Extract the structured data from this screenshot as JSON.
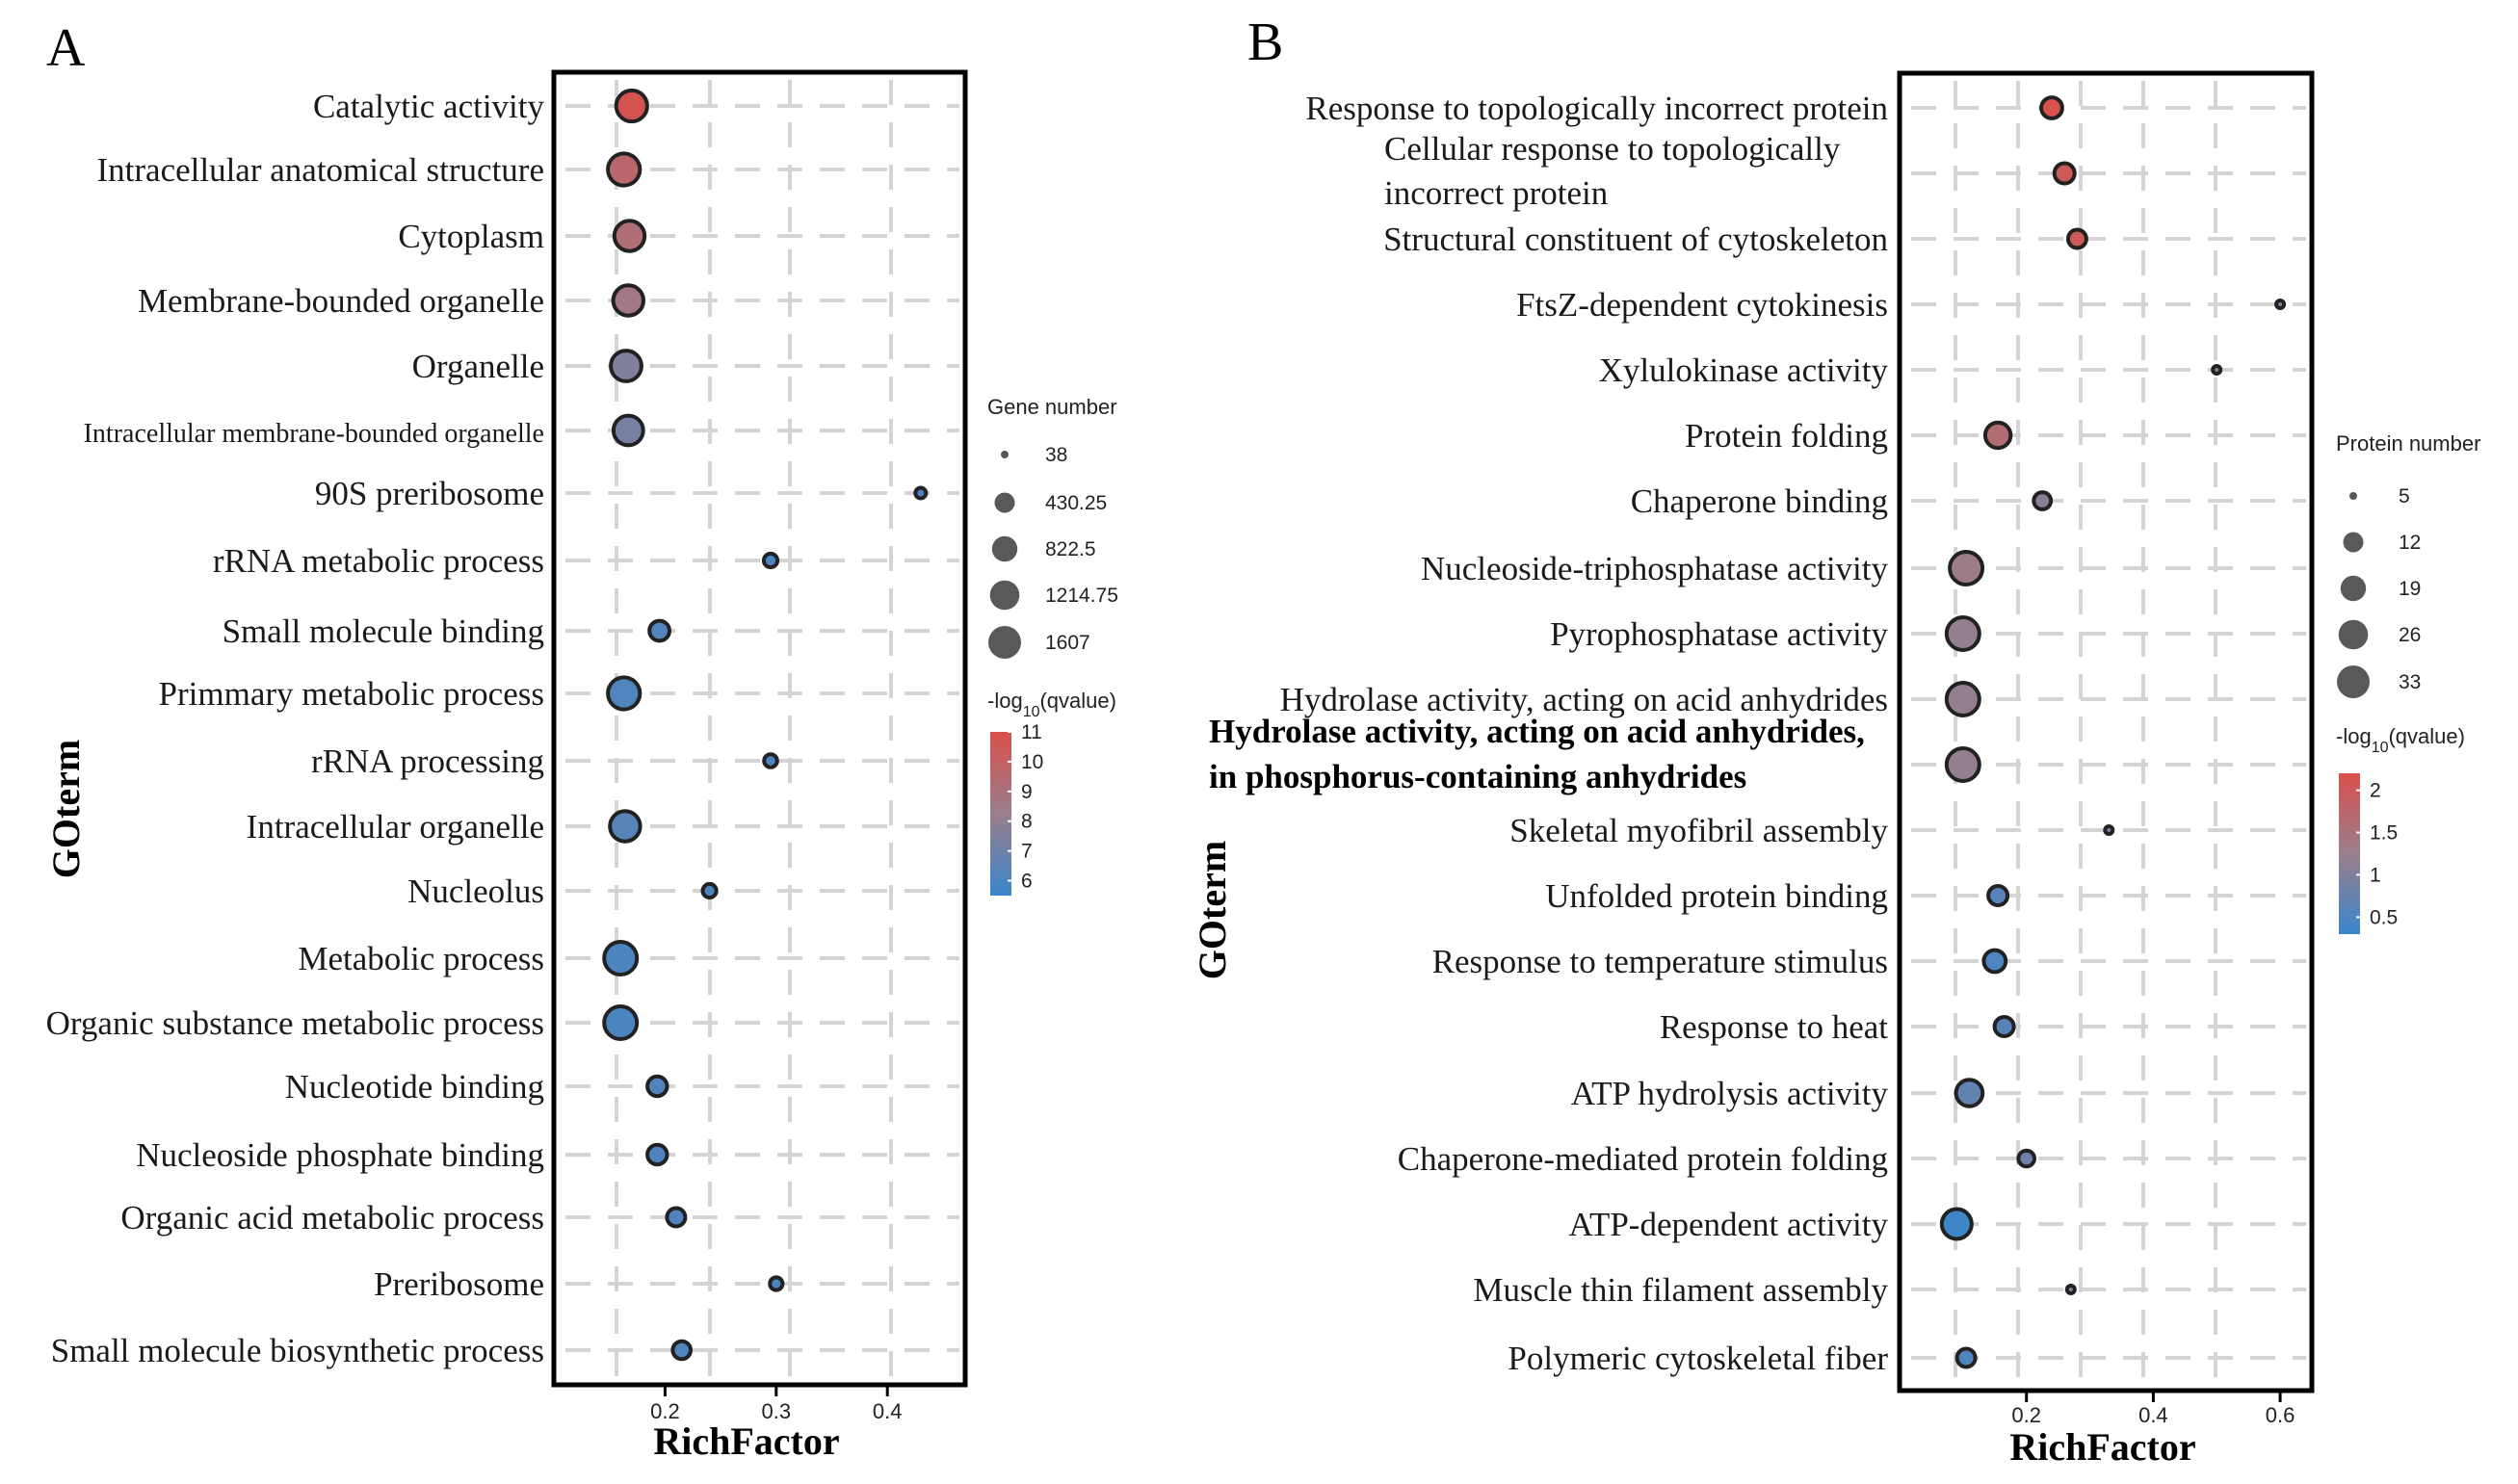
{
  "chart_data": [
    {
      "type": "scatter",
      "panel_label": "A",
      "xlabel": "RichFactor",
      "ylabel": "GOterm",
      "xlim": [
        0.1,
        0.47
      ],
      "xticks": [
        0.2,
        0.3,
        0.4
      ],
      "xtick_labels": [
        "0.2",
        "0.3",
        "0.4"
      ],
      "size_var": "Gene number",
      "size_range": [
        38,
        1607
      ],
      "color_range": [
        5.5,
        11
      ],
      "points": [
        {
          "term": "Catalytic  activity",
          "x": 0.17,
          "size": 1400,
          "color": 10.8
        },
        {
          "term": "Intracellular anatomical structure",
          "x": 0.163,
          "size": 1520,
          "color": 9.6
        },
        {
          "term": "Cytoplasm",
          "x": 0.168,
          "size": 1300,
          "color": 9.2
        },
        {
          "term": "Membrane-bounded organelle",
          "x": 0.167,
          "size": 1300,
          "color": 8.6
        },
        {
          "term": "Organelle",
          "x": 0.165,
          "size": 1350,
          "color": 7.5
        },
        {
          "term": "Intracellular membrane-bounded organelle",
          "x": 0.167,
          "size": 1250,
          "color": 7.3
        },
        {
          "term": "90S preribosome",
          "x": 0.43,
          "size": 60,
          "color": 6.0
        },
        {
          "term": "rRNA metabolic process",
          "x": 0.295,
          "size": 130,
          "color": 6.0
        },
        {
          "term": "Small molecule binding",
          "x": 0.195,
          "size": 420,
          "color": 6.2
        },
        {
          "term": "Primmary metabolic process",
          "x": 0.163,
          "size": 1520,
          "color": 6.1
        },
        {
          "term": "rRNA processing",
          "x": 0.295,
          "size": 110,
          "color": 6.0
        },
        {
          "term": "Intracellular organelle",
          "x": 0.164,
          "size": 1300,
          "color": 6.3
        },
        {
          "term": "Nucleolus",
          "x": 0.24,
          "size": 130,
          "color": 6.0
        },
        {
          "term": "Metabolic process",
          "x": 0.16,
          "size": 1607,
          "color": 6.0
        },
        {
          "term": "Organic substance metabolic process",
          "x": 0.16,
          "size": 1600,
          "color": 6.0
        },
        {
          "term": "Nucleotide binding",
          "x": 0.193,
          "size": 400,
          "color": 6.1
        },
        {
          "term": "Nucleoside phosphate binding",
          "x": 0.193,
          "size": 400,
          "color": 6.1
        },
        {
          "term": "Organic acid metabolic process",
          "x": 0.21,
          "size": 320,
          "color": 6.1
        },
        {
          "term": "Preribosome",
          "x": 0.3,
          "size": 100,
          "color": 6.0
        },
        {
          "term": "Small molecule biosynthetic process",
          "x": 0.215,
          "size": 300,
          "color": 6.1
        }
      ],
      "size_legend": {
        "title": "Gene number",
        "entries": [
          "38",
          "430.25",
          "822.5",
          "1214.75",
          "1607"
        ],
        "values": [
          38,
          430.25,
          822.5,
          1214.75,
          1607
        ]
      },
      "color_legend": {
        "title_main": "-log",
        "title_sub": "10",
        "title_end": "(qvalue)",
        "ticks": [
          "11",
          "10",
          "9",
          "8",
          "7",
          "6"
        ],
        "values": [
          11,
          10,
          9,
          8,
          7,
          6
        ]
      }
    },
    {
      "type": "scatter",
      "panel_label": "B",
      "xlabel": "RichFactor",
      "ylabel": "GOterm",
      "xlim": [
        0.0,
        0.65
      ],
      "xticks": [
        0.2,
        0.4,
        0.6
      ],
      "xtick_labels": [
        "0.2",
        "0.4",
        "0.6"
      ],
      "size_var": "Protein number",
      "size_range": [
        5,
        33
      ],
      "color_range": [
        0.3,
        2.2
      ],
      "points": [
        {
          "term": "Response to topologically incorrect protein",
          "x": 0.24,
          "size": 13,
          "color": 2.2
        },
        {
          "term": "Cellular response to topologically incorrect protein",
          "x": 0.26,
          "size": 12,
          "color": 2.0
        },
        {
          "term": "Structural constituent of cytoskeleton",
          "x": 0.28,
          "size": 10,
          "color": 2.0
        },
        {
          "term": "FtsZ-dependent cytokinesis",
          "x": 0.6,
          "size": 5,
          "color": 1.0
        },
        {
          "term": "Xylulokinase activity",
          "x": 0.5,
          "size": 5,
          "color": 1.0
        },
        {
          "term": "Protein folding",
          "x": 0.155,
          "size": 19,
          "color": 1.6
        },
        {
          "term": "Chaperone binding",
          "x": 0.225,
          "size": 9,
          "color": 1.1
        },
        {
          "term": "Nucleoside-triphosphatase activity",
          "x": 0.105,
          "size": 33,
          "color": 1.3
        },
        {
          "term": "Pyrophosphatase activity",
          "x": 0.1,
          "size": 33,
          "color": 1.2
        },
        {
          "term": "Hydrolase activity, acting  on acid anhydrides",
          "x": 0.1,
          "size": 33,
          "color": 1.2
        },
        {
          "term": "Hydrolase activity, acting on acid anhydrides, in phosphorus-containing anhydrides",
          "x": 0.1,
          "size": 33,
          "color": 1.2
        },
        {
          "term": "Skeletal myofibril assembly",
          "x": 0.33,
          "size": 5,
          "color": 1.0
        },
        {
          "term": "Unfolded protein binding",
          "x": 0.155,
          "size": 11,
          "color": 0.6
        },
        {
          "term": "Response to temperature stimulus",
          "x": 0.15,
          "size": 14,
          "color": 0.5
        },
        {
          "term": "Response to heat",
          "x": 0.165,
          "size": 11,
          "color": 0.6
        },
        {
          "term": "ATP hydrolysis activity",
          "x": 0.11,
          "size": 21,
          "color": 0.7
        },
        {
          "term": "Chaperone-mediated protein folding",
          "x": 0.2,
          "size": 8,
          "color": 0.8
        },
        {
          "term": "ATP-dependent activity",
          "x": 0.09,
          "size": 27,
          "color": 0.35
        },
        {
          "term": "Muscle thin filament assembly",
          "x": 0.27,
          "size": 5,
          "color": 1.0
        },
        {
          "term": "Polymeric cytoskeletal fiber",
          "x": 0.105,
          "size": 10,
          "color": 0.5
        }
      ],
      "size_legend": {
        "title": "Protein number",
        "entries": [
          "5",
          "12",
          "19",
          "26",
          "33"
        ],
        "values": [
          5,
          12,
          19,
          26,
          33
        ]
      },
      "color_legend": {
        "title_main": "-log",
        "title_sub": "10",
        "title_end": "(qvalue)",
        "ticks": [
          "2",
          "1.5",
          "1",
          "0.5"
        ],
        "values": [
          2,
          1.5,
          1,
          0.5
        ]
      }
    }
  ],
  "colors": {
    "high": "#d9504c",
    "mid": "#9a7e8c",
    "low": "#3a86cc",
    "border": "#222222",
    "grid": "#d4d4d4"
  }
}
